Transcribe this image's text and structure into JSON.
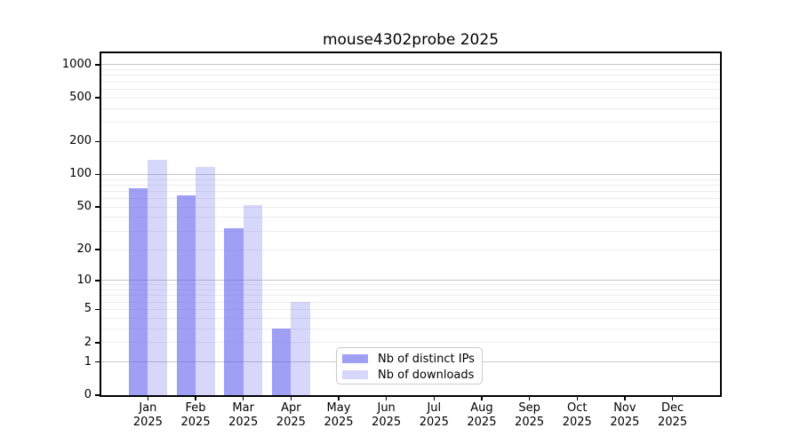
{
  "title": "mouse4302probe 2025",
  "chart_data": {
    "type": "bar",
    "title": "mouse4302probe 2025",
    "categories": [
      "Jan",
      "Feb",
      "Mar",
      "Apr",
      "May",
      "Jun",
      "Jul",
      "Aug",
      "Sep",
      "Oct",
      "Nov",
      "Dec"
    ],
    "year_label": "2025",
    "series": [
      {
        "name": "Nb of distinct IPs",
        "color": "#6464f0",
        "alpha": 0.62,
        "values": [
          75,
          64,
          32,
          3,
          0,
          0,
          0,
          0,
          0,
          0,
          0,
          0
        ]
      },
      {
        "name": "Nb of downloads",
        "color": "#6464f0",
        "alpha": 0.26,
        "values": [
          135,
          117,
          52,
          6,
          0,
          0,
          0,
          0,
          0,
          0,
          0,
          0
        ]
      }
    ],
    "y_scale": "log1p",
    "ylim": [
      0,
      1270
    ],
    "y_ticks": [
      1000,
      500,
      200,
      100,
      50,
      20,
      10,
      5,
      2,
      1,
      0
    ],
    "y_major_gridlines": [
      1,
      10,
      100,
      1000
    ],
    "y_minor_gridlines": [
      2,
      3,
      4,
      5,
      6,
      7,
      8,
      9,
      20,
      30,
      40,
      50,
      60,
      70,
      80,
      90,
      200,
      300,
      400,
      500,
      600,
      700,
      800,
      900
    ],
    "legend_position": "lower center",
    "grid": true,
    "xlabel": "",
    "ylabel": ""
  },
  "colors": {
    "background": "#ffffff",
    "axis": "#000000",
    "grid_major": "#c6c6c6",
    "grid_minor": "#ececec",
    "legend_border": "#c9c9c9",
    "bar_distinct_ips_rendered": "#a2a2f2",
    "bar_downloads_rendered": "#d8d8fa"
  }
}
